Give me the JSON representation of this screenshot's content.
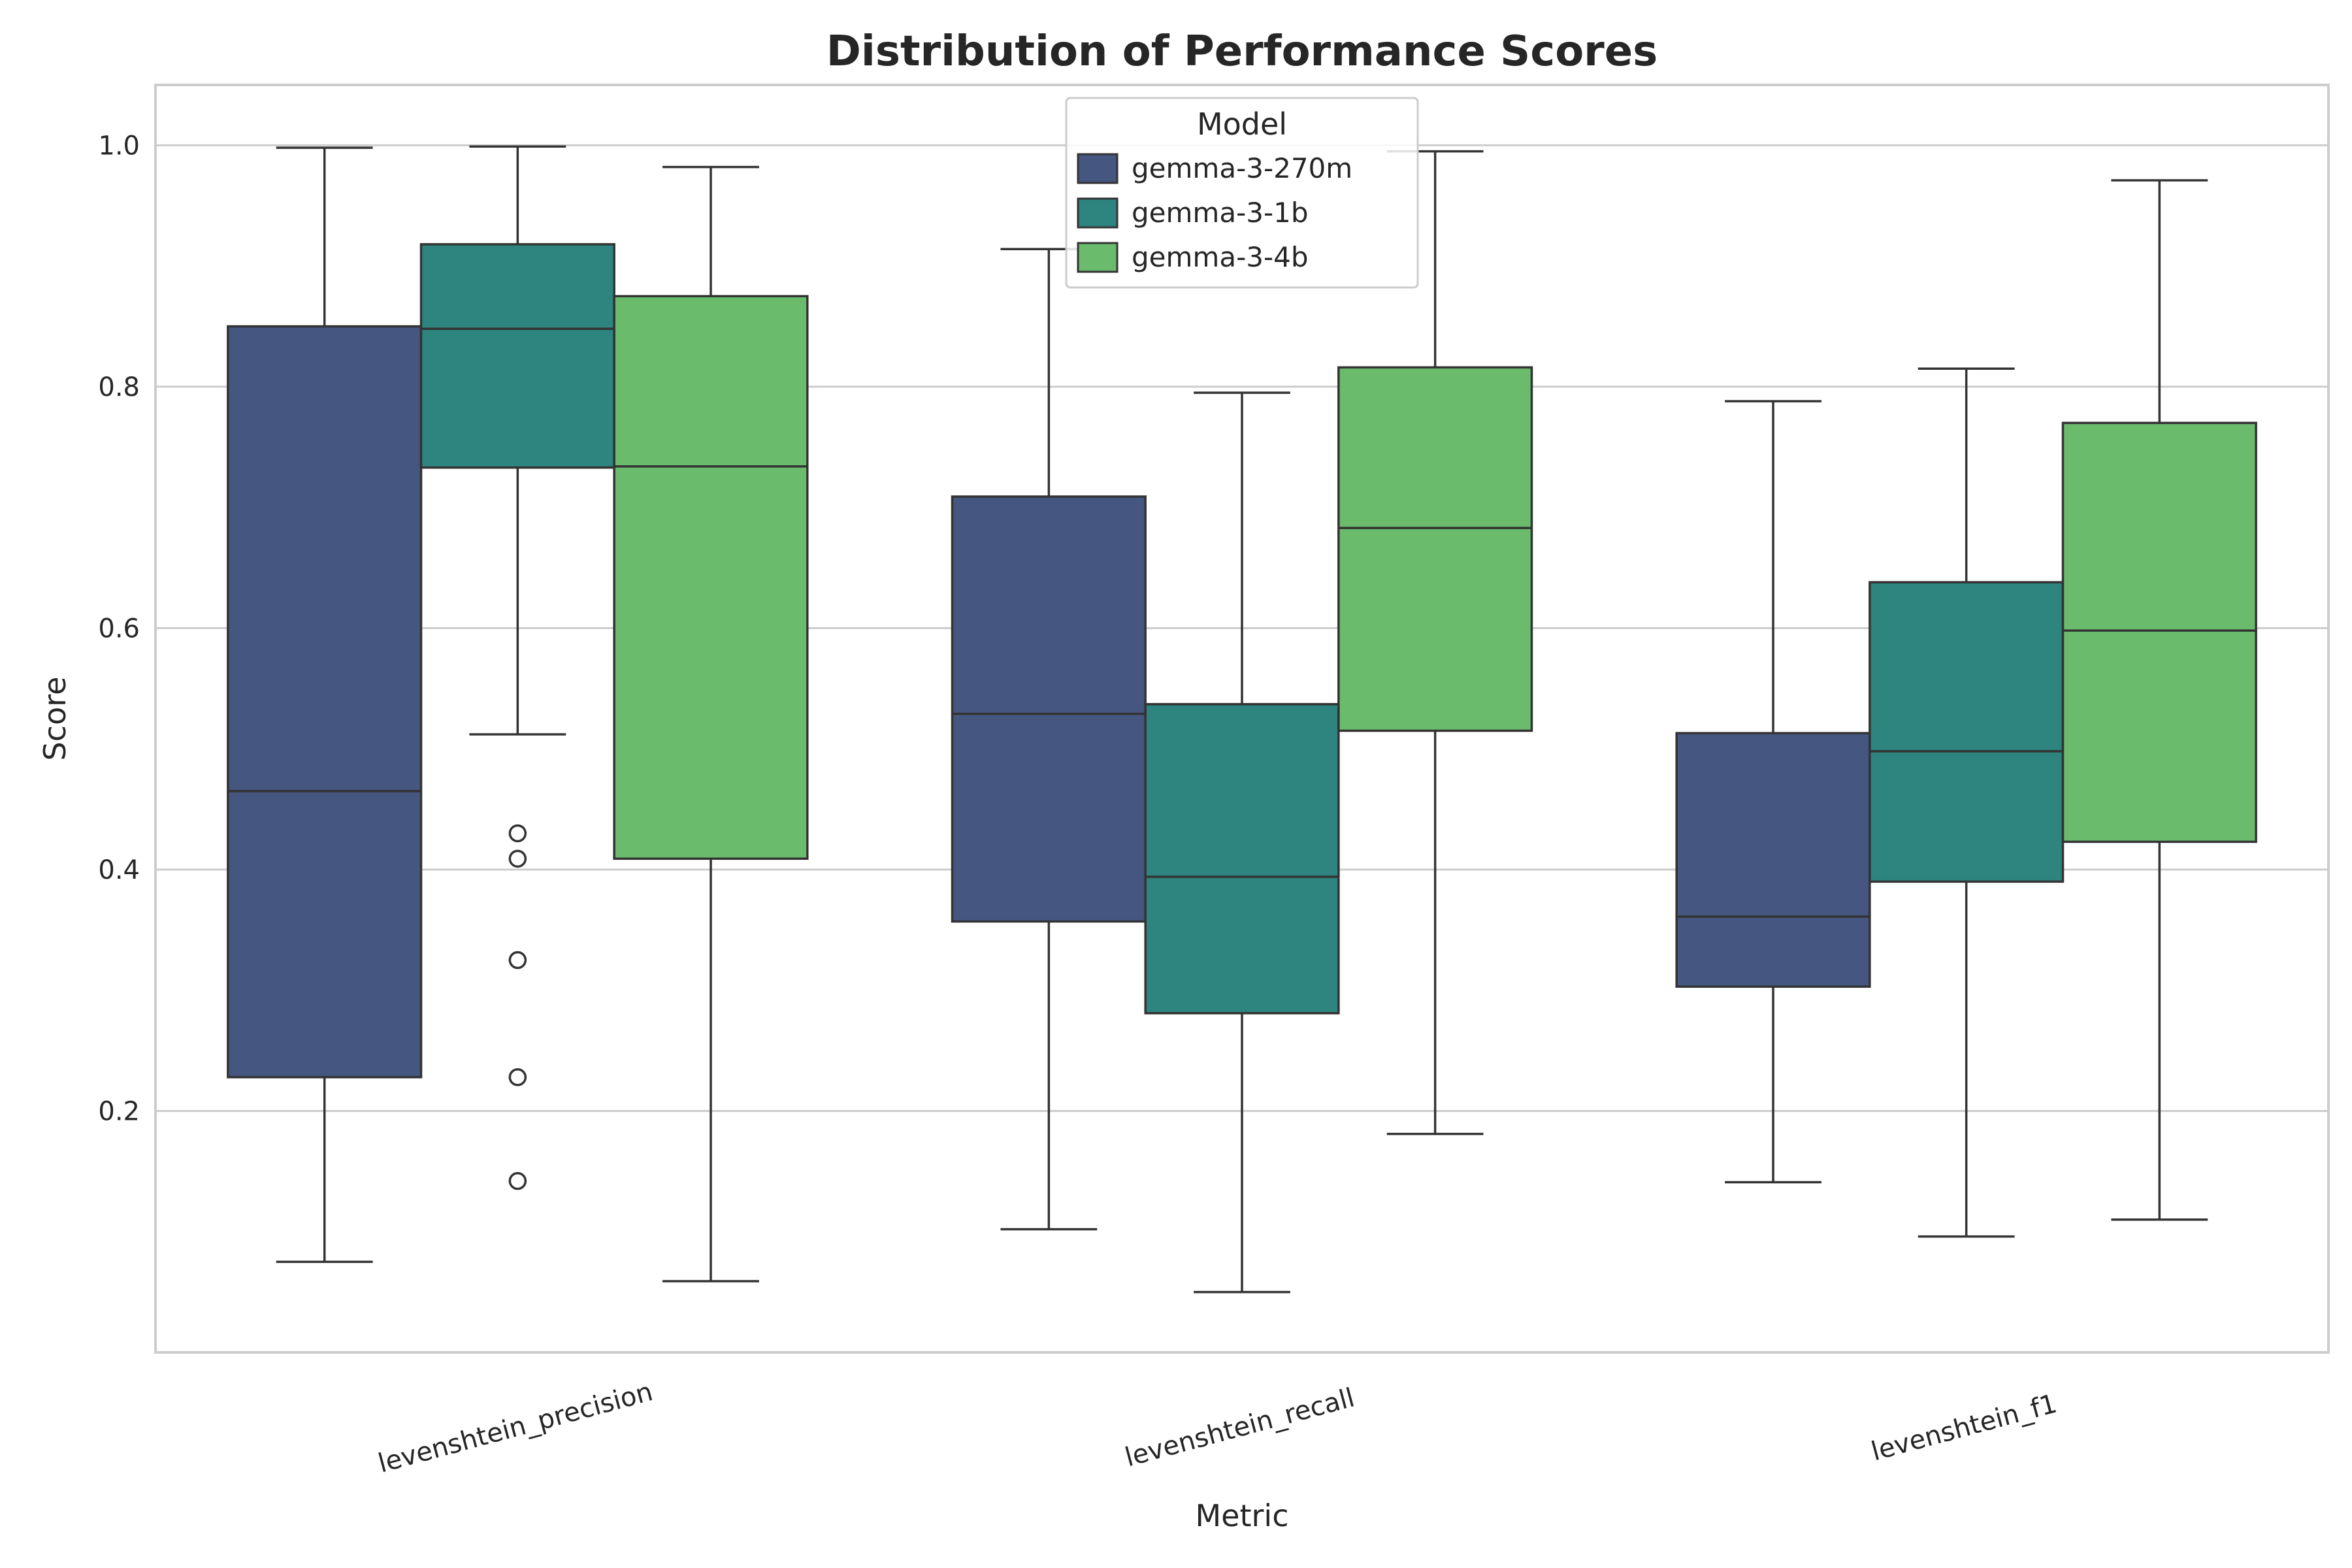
{
  "chart_data": {
    "type": "box",
    "title": "Distribution of Performance Scores",
    "xlabel": "Metric",
    "ylabel": "Score",
    "ylim": [
      0.0,
      1.05
    ],
    "yticks": [
      0.2,
      0.4,
      0.6,
      0.8,
      1.0
    ],
    "ytick_labels": [
      "0.2",
      "0.4",
      "0.6",
      "0.8",
      "1.0"
    ],
    "grid": "horizontal",
    "categories": [
      "levenshtein_precision",
      "levenshtein_recall",
      "levenshtein_f1"
    ],
    "legend": {
      "title": "Model",
      "position": "top-center"
    },
    "series": [
      {
        "name": "gemma-3-270m",
        "color": "#455681",
        "boxes": [
          {
            "whislo": 0.075,
            "q1": 0.228,
            "med": 0.465,
            "q3": 0.85,
            "whishi": 0.998,
            "fliers": []
          },
          {
            "whislo": 0.102,
            "q1": 0.357,
            "med": 0.529,
            "q3": 0.709,
            "whishi": 0.914,
            "fliers": []
          },
          {
            "whislo": 0.141,
            "q1": 0.303,
            "med": 0.361,
            "q3": 0.513,
            "whishi": 0.788,
            "fliers": []
          }
        ]
      },
      {
        "name": "gemma-3-1b",
        "color": "#2e847e",
        "boxes": [
          {
            "whislo": 0.512,
            "q1": 0.733,
            "med": 0.848,
            "q3": 0.918,
            "whishi": 0.999,
            "fliers": [
              0.43,
              0.409,
              0.325,
              0.228,
              0.142
            ]
          },
          {
            "whislo": 0.05,
            "q1": 0.281,
            "med": 0.394,
            "q3": 0.537,
            "whishi": 0.795,
            "fliers": []
          },
          {
            "whislo": 0.096,
            "q1": 0.39,
            "med": 0.498,
            "q3": 0.638,
            "whishi": 0.815,
            "fliers": []
          }
        ]
      },
      {
        "name": "gemma-3-4b",
        "color": "#6abc6c",
        "boxes": [
          {
            "whislo": 0.059,
            "q1": 0.409,
            "med": 0.734,
            "q3": 0.875,
            "whishi": 0.982,
            "fliers": []
          },
          {
            "whislo": 0.181,
            "q1": 0.515,
            "med": 0.683,
            "q3": 0.816,
            "whishi": 0.995,
            "fliers": []
          },
          {
            "whislo": 0.11,
            "q1": 0.423,
            "med": 0.598,
            "q3": 0.77,
            "whishi": 0.971,
            "fliers": []
          }
        ]
      }
    ]
  }
}
